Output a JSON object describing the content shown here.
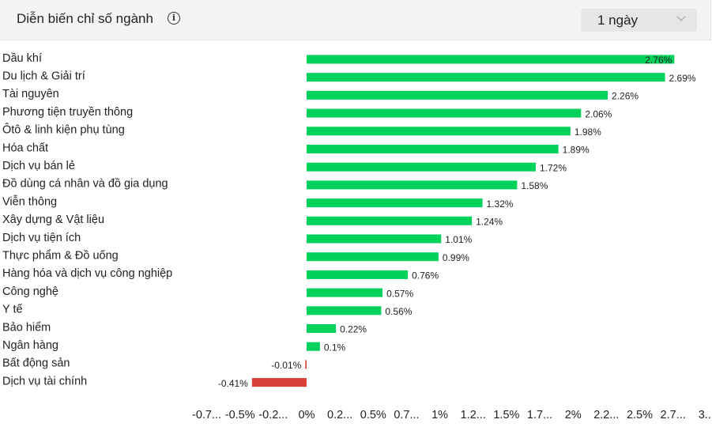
{
  "header": {
    "title": "Diễn biến chỉ số ngành",
    "info_icon": "info-icon",
    "period_selected": "1 ngày",
    "chevron_icon": "chevron-down-icon"
  },
  "colors": {
    "positive": "#00d25b",
    "negative": "#d9403a"
  },
  "chart_data": {
    "type": "bar",
    "orientation": "horizontal",
    "categories": [
      "Dầu khí",
      "Du lịch & Giải trí",
      "Tài nguyên",
      "Phương tiện truyền thông",
      "Ôtô & linh kiện phụ tùng",
      "Hóa chất",
      "Dịch vụ bán lẻ",
      "Đồ dùng cá nhân và đồ gia dụng",
      "Viễn thông",
      "Xây dựng & Vật liệu",
      "Dịch vụ tiện ích",
      "Thực phẩm & Đồ uống",
      "Hàng hóa và dịch vụ công nghiệp",
      "Công nghệ",
      "Y tế",
      "Bảo hiểm",
      "Ngân hàng",
      "Bất động sản",
      "Dịch vụ tài chính"
    ],
    "values": [
      2.76,
      2.69,
      2.26,
      2.06,
      1.98,
      1.89,
      1.72,
      1.58,
      1.32,
      1.24,
      1.01,
      0.99,
      0.76,
      0.57,
      0.56,
      0.22,
      0.1,
      -0.01,
      -0.41
    ],
    "value_labels": [
      "2.76%",
      "2.69%",
      "2.26%",
      "2.06%",
      "1.98%",
      "1.89%",
      "1.72%",
      "1.58%",
      "1.32%",
      "1.24%",
      "1.01%",
      "0.99%",
      "0.76%",
      "0.57%",
      "0.56%",
      "0.22%",
      "0.1%",
      "-0.01%",
      "-0.41%"
    ],
    "x_ticks": [
      -0.75,
      -0.5,
      -0.25,
      0,
      0.25,
      0.5,
      0.75,
      1,
      1.25,
      1.5,
      1.75,
      2,
      2.25,
      2.5,
      2.75,
      3
    ],
    "x_tick_labels": [
      "-0.7...",
      "-0.5%",
      "-0.2...",
      "0%",
      "0.2...",
      "0.5%",
      "0.7...",
      "1%",
      "1.2...",
      "1.5%",
      "1.7...",
      "2%",
      "2.2...",
      "2.5%",
      "2.7...",
      "3..."
    ],
    "xlim": [
      -0.75,
      3
    ],
    "title": "",
    "xlabel": "",
    "ylabel": "",
    "grid": false,
    "legend": "none"
  }
}
